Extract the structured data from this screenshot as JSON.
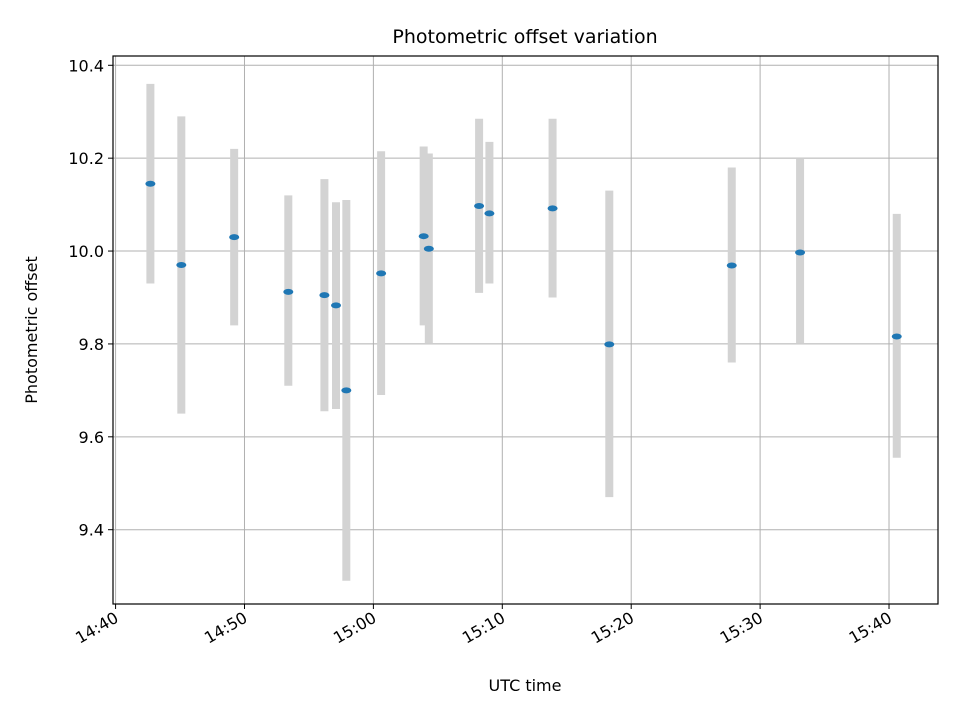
{
  "chart_data": {
    "type": "scatter",
    "title": "Photometric offset variation",
    "xlabel": "UTC time",
    "ylabel": "Photometric offset",
    "xlim": [
      "14:39.8",
      "15:43.8"
    ],
    "ylim": [
      9.24,
      10.42
    ],
    "x_ticks": [
      "14:40",
      "14:50",
      "15:00",
      "15:10",
      "15:20",
      "15:30",
      "15:40"
    ],
    "y_ticks": [
      "9.4",
      "9.6",
      "9.8",
      "10.0",
      "10.2",
      "10.4"
    ],
    "grid": true,
    "colors": {
      "point": "#1f77b4",
      "errorbar": "#d3d3d3",
      "grid": "#b0b0b0"
    },
    "points": [
      {
        "x": "14:42.7",
        "y": 10.145,
        "ylow": 9.93,
        "yhigh": 10.36
      },
      {
        "x": "14:45.1",
        "y": 9.97,
        "ylow": 9.65,
        "yhigh": 10.29
      },
      {
        "x": "14:49.2",
        "y": 10.03,
        "ylow": 9.84,
        "yhigh": 10.22
      },
      {
        "x": "14:53.4",
        "y": 9.912,
        "ylow": 9.71,
        "yhigh": 10.12
      },
      {
        "x": "14:56.2",
        "y": 9.905,
        "ylow": 9.655,
        "yhigh": 10.155
      },
      {
        "x": "14:57.1",
        "y": 9.883,
        "ylow": 9.66,
        "yhigh": 10.105
      },
      {
        "x": "14:57.9",
        "y": 9.7,
        "ylow": 9.29,
        "yhigh": 10.11
      },
      {
        "x": "15:00.6",
        "y": 9.952,
        "ylow": 9.69,
        "yhigh": 10.215
      },
      {
        "x": "15:03.9",
        "y": 10.032,
        "ylow": 9.84,
        "yhigh": 10.225
      },
      {
        "x": "15:04.3",
        "y": 10.005,
        "ylow": 9.8,
        "yhigh": 10.21
      },
      {
        "x": "15:08.2",
        "y": 10.097,
        "ylow": 9.91,
        "yhigh": 10.285
      },
      {
        "x": "15:09.0",
        "y": 10.081,
        "ylow": 9.93,
        "yhigh": 10.235
      },
      {
        "x": "15:13.9",
        "y": 10.092,
        "ylow": 9.9,
        "yhigh": 10.285
      },
      {
        "x": "15:18.3",
        "y": 9.799,
        "ylow": 9.47,
        "yhigh": 10.13
      },
      {
        "x": "15:27.8",
        "y": 9.969,
        "ylow": 9.76,
        "yhigh": 10.18
      },
      {
        "x": "15:33.1",
        "y": 9.997,
        "ylow": 9.8,
        "yhigh": 10.2
      },
      {
        "x": "15:40.6",
        "y": 9.816,
        "ylow": 9.555,
        "yhigh": 10.08
      }
    ]
  }
}
